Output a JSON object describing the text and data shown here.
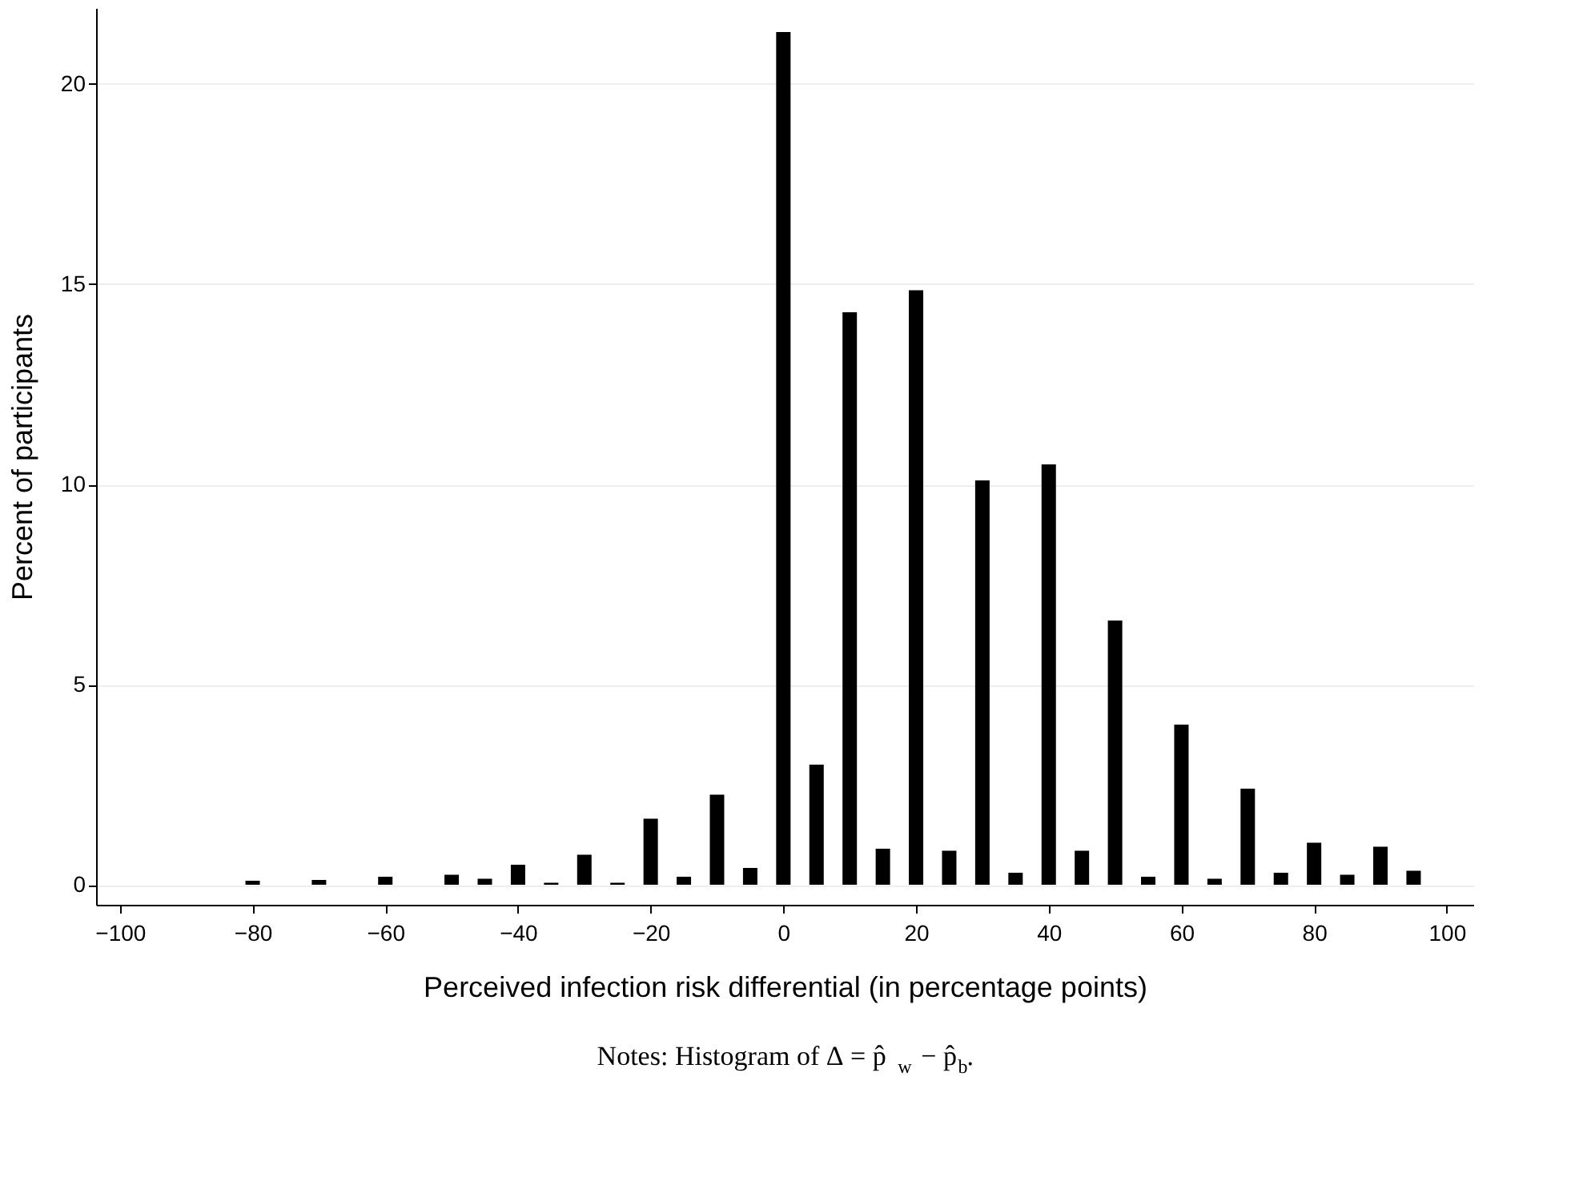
{
  "chart_data": {
    "type": "bar",
    "xlabel": "Perceived infection risk differential (in percentage points)",
    "ylabel": "Percent of participants",
    "annotations": [
      "Notes: Histogram of Δ = p̂$_{w}$ − p̂$_{b}$."
    ],
    "x": [
      -80,
      -70,
      -60,
      -50,
      -45,
      -40,
      -35,
      -30,
      -25,
      -20,
      -15,
      -10,
      -5,
      0,
      5,
      10,
      15,
      20,
      25,
      30,
      35,
      40,
      45,
      50,
      55,
      60,
      65,
      70,
      75,
      80,
      85,
      90,
      95
    ],
    "series": [
      {
        "color": "#000000",
        "values": [
          0.1,
          0.12,
          0.2,
          0.25,
          0.15,
          0.5,
          0.05,
          0.75,
          0.05,
          1.65,
          0.2,
          2.25,
          0.42,
          21.3,
          3.0,
          14.3,
          0.9,
          14.85,
          0.85,
          10.1,
          0.3,
          10.5,
          0.85,
          6.6,
          0.2,
          4.0,
          0.15,
          2.4,
          0.3,
          1.05,
          0.25,
          0.95,
          0.35
        ]
      }
    ],
    "xlim": [
      -103.6,
      104
    ],
    "xticks": [
      -100,
      -80,
      -60,
      -40,
      -20,
      0,
      20,
      40,
      60,
      80,
      100
    ],
    "ylim": [
      -0.5,
      21.9
    ],
    "yticks": [
      0,
      5,
      10,
      15,
      20
    ],
    "grid": "y"
  }
}
